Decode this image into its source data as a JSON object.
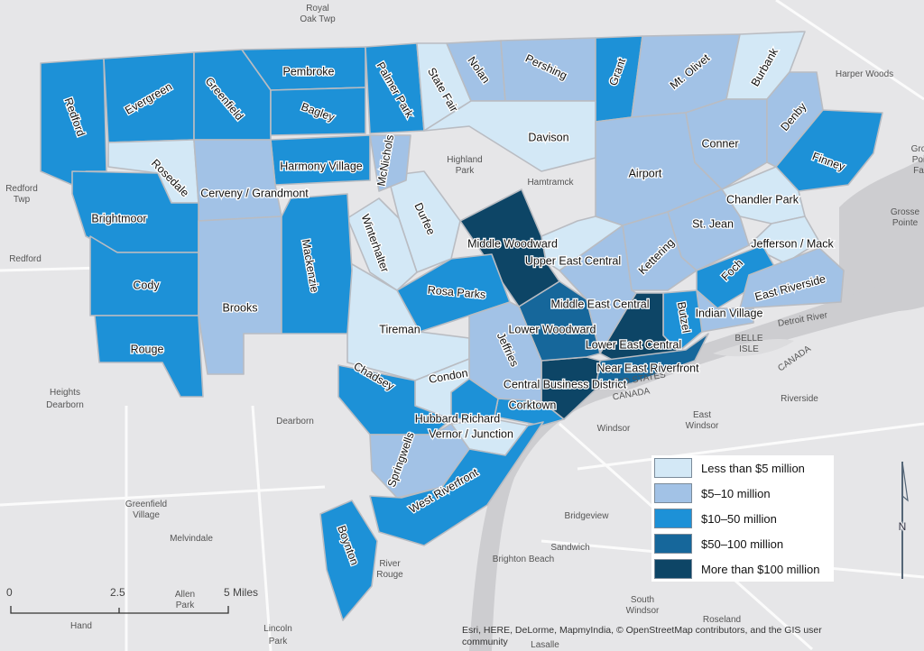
{
  "legend": {
    "items": [
      {
        "label": "Less than $5 million",
        "color": "#d3e8f6"
      },
      {
        "label": "$5–10 million",
        "color": "#a2c2e6"
      },
      {
        "label": "$10–50 million",
        "color": "#1d91d7"
      },
      {
        "label": "$50–100 million",
        "color": "#16679b"
      },
      {
        "label": "More than $100 million",
        "color": "#0d4566"
      }
    ]
  },
  "districts": [
    {
      "name": "Redford",
      "tier": 2
    },
    {
      "name": "Evergreen",
      "tier": 2
    },
    {
      "name": "Greenfield",
      "tier": 2
    },
    {
      "name": "Pembroke",
      "tier": 2
    },
    {
      "name": "Bagley",
      "tier": 2
    },
    {
      "name": "Palmer Park",
      "tier": 2
    },
    {
      "name": "State Fair",
      "tier": 0
    },
    {
      "name": "Nolan",
      "tier": 1
    },
    {
      "name": "Pershing",
      "tier": 1
    },
    {
      "name": "Grant",
      "tier": 2
    },
    {
      "name": "Mt. Olivet",
      "tier": 1
    },
    {
      "name": "Burbank",
      "tier": 0
    },
    {
      "name": "Davison",
      "tier": 0
    },
    {
      "name": "Airport",
      "tier": 1
    },
    {
      "name": "Conner",
      "tier": 1
    },
    {
      "name": "Denby",
      "tier": 1
    },
    {
      "name": "Finney",
      "tier": 2
    },
    {
      "name": "Chandler Park",
      "tier": 0
    },
    {
      "name": "Jefferson / Mack",
      "tier": 0
    },
    {
      "name": "St. Jean",
      "tier": 1
    },
    {
      "name": "Kettering",
      "tier": 1
    },
    {
      "name": "Foch",
      "tier": 2
    },
    {
      "name": "East Riverside",
      "tier": 1
    },
    {
      "name": "Indian Village",
      "tier": 1
    },
    {
      "name": "Butzel",
      "tier": 2
    },
    {
      "name": "Lower East Central",
      "tier": 4
    },
    {
      "name": "Near East Riverfront",
      "tier": 3
    },
    {
      "name": "Central Business District",
      "tier": 4
    },
    {
      "name": "Corktown",
      "tier": 2
    },
    {
      "name": "Lower Woodward",
      "tier": 3
    },
    {
      "name": "Middle East Central",
      "tier": 1
    },
    {
      "name": "Upper East Central",
      "tier": 0
    },
    {
      "name": "Middle Woodward",
      "tier": 4
    },
    {
      "name": "Rosa Parks",
      "tier": 2
    },
    {
      "name": "Durfee",
      "tier": 0
    },
    {
      "name": "Winterhalter",
      "tier": 0
    },
    {
      "name": "McNichols",
      "tier": 1
    },
    {
      "name": "Tireman",
      "tier": 0
    },
    {
      "name": "Jeffries",
      "tier": 1
    },
    {
      "name": "Condon",
      "tier": 0
    },
    {
      "name": "Chadsey",
      "tier": 2
    },
    {
      "name": "Hubbard Richard",
      "tier": 2
    },
    {
      "name": "Vernor / Junction",
      "tier": 0
    },
    {
      "name": "Springwells",
      "tier": 1
    },
    {
      "name": "West Riverfront",
      "tier": 2
    },
    {
      "name": "Boynton",
      "tier": 2
    },
    {
      "name": "Harmony Village",
      "tier": 2
    },
    {
      "name": "Rosedale",
      "tier": 0
    },
    {
      "name": "Cerveny / Grandmont",
      "tier": 1
    },
    {
      "name": "Brightmoor",
      "tier": 2
    },
    {
      "name": "Cody",
      "tier": 2
    },
    {
      "name": "Rouge",
      "tier": 2
    },
    {
      "name": "Brooks",
      "tier": 1
    },
    {
      "name": "Mackenzie",
      "tier": 2
    }
  ],
  "places": [
    {
      "name": "Royal"
    },
    {
      "name": "Oak Twp"
    },
    {
      "name": "Harper Woods"
    },
    {
      "name": "Redford"
    },
    {
      "name": "Twp"
    },
    {
      "name": "Redford"
    },
    {
      "name": "Highland"
    },
    {
      "name": "Park"
    },
    {
      "name": "Hamtramck"
    },
    {
      "name": "Grosse"
    },
    {
      "name": "Pointe"
    },
    {
      "name": "Dearborn"
    },
    {
      "name": "Heights"
    },
    {
      "name": "Dearborn"
    },
    {
      "name": "Greenfield"
    },
    {
      "name": "Village"
    },
    {
      "name": "Melvindale"
    },
    {
      "name": "River"
    },
    {
      "name": "Rouge"
    },
    {
      "name": "Allen"
    },
    {
      "name": "Park"
    },
    {
      "name": "Lincoln"
    },
    {
      "name": "Park"
    },
    {
      "name": "Hand"
    },
    {
      "name": "Windsor"
    },
    {
      "name": "Bridgeview"
    },
    {
      "name": "Sandwich"
    },
    {
      "name": "Brighton Beach"
    },
    {
      "name": "South"
    },
    {
      "name": "Windsor"
    },
    {
      "name": "Roseland"
    },
    {
      "name": "Riverside"
    },
    {
      "name": "East"
    },
    {
      "name": "Windsor"
    },
    {
      "name": "BELLE"
    },
    {
      "name": "ISLE"
    },
    {
      "name": "Detroit River"
    },
    {
      "name": "UNITED STATES"
    },
    {
      "name": "CANADA"
    },
    {
      "name": "CANADA"
    },
    {
      "name": "Lasalle"
    },
    {
      "name": "Gro"
    },
    {
      "name": "Poi"
    },
    {
      "name": "Fa"
    }
  ],
  "scale_bar": {
    "ticks": [
      "0",
      "2.5",
      "5 Miles"
    ]
  },
  "north_arrow": {
    "label": "N"
  },
  "attribution": "Esri, HERE, DeLorme, MapmyIndia, © OpenStreetMap contributors, and the GIS user community"
}
